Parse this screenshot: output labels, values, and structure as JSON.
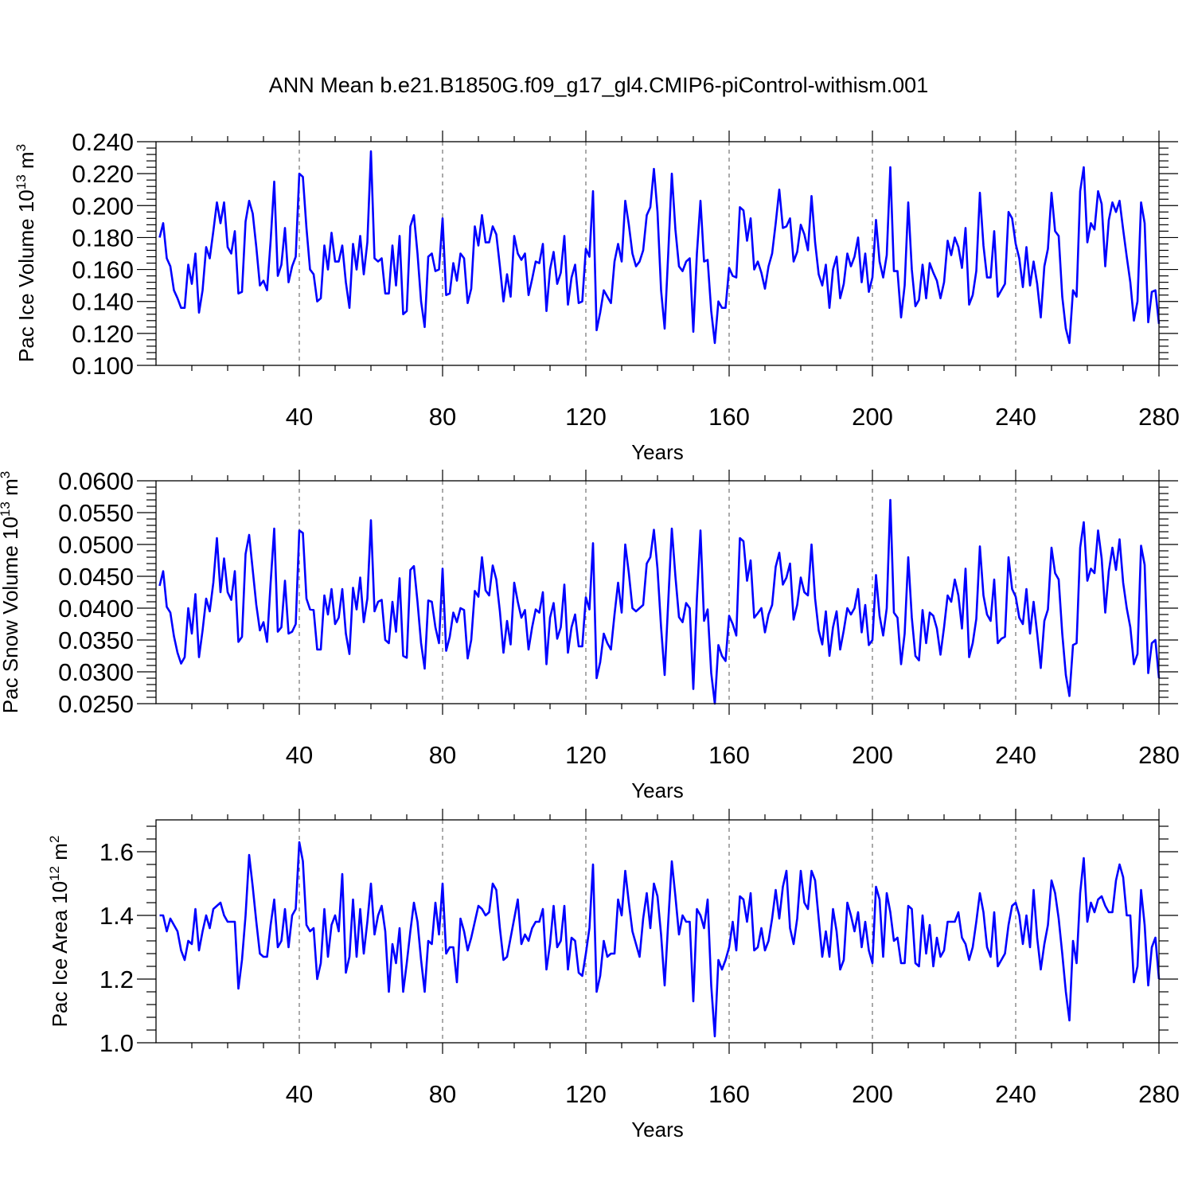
{
  "title": "ANN Mean b.e21.B1850G.f09_g17_gl4.CMIP6-piControl-withism.001",
  "colors": {
    "series": "#0000ff",
    "grid": "#555555",
    "axis": "#000000"
  },
  "chart_data": [
    {
      "type": "line",
      "ylabel_main": "Pac Ice Volume 10",
      "ylabel_exp": "13",
      "ylabel_unit": "m",
      "ylabel_unit_exp": "3",
      "xlabel": "Years",
      "xlim": [
        0,
        280
      ],
      "ylim": [
        0.1,
        0.24
      ],
      "x_ticks": [
        40,
        80,
        120,
        160,
        200,
        240,
        280
      ],
      "y_ticks": [
        "0.100",
        "0.120",
        "0.140",
        "0.160",
        "0.180",
        "0.200",
        "0.220",
        "0.240"
      ],
      "grid": "vertical-dashed",
      "x_start": 1,
      "values": [
        0.18,
        0.189,
        0.167,
        0.162,
        0.147,
        0.142,
        0.136,
        0.136,
        0.163,
        0.151,
        0.17,
        0.133,
        0.147,
        0.174,
        0.167,
        0.184,
        0.202,
        0.189,
        0.202,
        0.174,
        0.17,
        0.184,
        0.145,
        0.146,
        0.19,
        0.203,
        0.195,
        0.174,
        0.15,
        0.153,
        0.147,
        0.178,
        0.215,
        0.156,
        0.163,
        0.186,
        0.152,
        0.162,
        0.168,
        0.22,
        0.218,
        0.186,
        0.16,
        0.157,
        0.14,
        0.142,
        0.175,
        0.16,
        0.183,
        0.165,
        0.165,
        0.175,
        0.152,
        0.136,
        0.176,
        0.16,
        0.181,
        0.157,
        0.177,
        0.234,
        0.167,
        0.165,
        0.167,
        0.145,
        0.145,
        0.175,
        0.15,
        0.181,
        0.132,
        0.134,
        0.187,
        0.194,
        0.17,
        0.14,
        0.124,
        0.168,
        0.17,
        0.159,
        0.16,
        0.192,
        0.144,
        0.145,
        0.164,
        0.153,
        0.17,
        0.167,
        0.139,
        0.148,
        0.187,
        0.175,
        0.194,
        0.177,
        0.177,
        0.187,
        0.182,
        0.162,
        0.14,
        0.157,
        0.143,
        0.181,
        0.17,
        0.166,
        0.17,
        0.144,
        0.154,
        0.165,
        0.164,
        0.176,
        0.134,
        0.16,
        0.171,
        0.151,
        0.158,
        0.181,
        0.138,
        0.155,
        0.163,
        0.139,
        0.14,
        0.173,
        0.168,
        0.209,
        0.122,
        0.133,
        0.147,
        0.143,
        0.139,
        0.165,
        0.176,
        0.165,
        0.203,
        0.188,
        0.17,
        0.162,
        0.165,
        0.172,
        0.194,
        0.199,
        0.223,
        0.196,
        0.147,
        0.123,
        0.17,
        0.22,
        0.185,
        0.162,
        0.159,
        0.165,
        0.167,
        0.121,
        0.17,
        0.203,
        0.165,
        0.166,
        0.134,
        0.114,
        0.14,
        0.136,
        0.136,
        0.161,
        0.156,
        0.155,
        0.199,
        0.197,
        0.178,
        0.192,
        0.16,
        0.165,
        0.158,
        0.148,
        0.162,
        0.17,
        0.189,
        0.21,
        0.186,
        0.187,
        0.192,
        0.165,
        0.171,
        0.188,
        0.182,
        0.172,
        0.206,
        0.177,
        0.157,
        0.15,
        0.163,
        0.136,
        0.16,
        0.168,
        0.142,
        0.151,
        0.17,
        0.162,
        0.168,
        0.18,
        0.152,
        0.17,
        0.146,
        0.155,
        0.191,
        0.165,
        0.155,
        0.169,
        0.224,
        0.159,
        0.159,
        0.13,
        0.15,
        0.202,
        0.16,
        0.137,
        0.141,
        0.163,
        0.142,
        0.164,
        0.158,
        0.153,
        0.142,
        0.152,
        0.178,
        0.169,
        0.18,
        0.174,
        0.161,
        0.186,
        0.138,
        0.144,
        0.159,
        0.208,
        0.175,
        0.155,
        0.155,
        0.184,
        0.143,
        0.147,
        0.151,
        0.196,
        0.192,
        0.176,
        0.167,
        0.149,
        0.174,
        0.15,
        0.165,
        0.151,
        0.13,
        0.162,
        0.173,
        0.208,
        0.184,
        0.181,
        0.143,
        0.123,
        0.114,
        0.147,
        0.143,
        0.209,
        0.224,
        0.177,
        0.189,
        0.185,
        0.209,
        0.201,
        0.162,
        0.191,
        0.202,
        0.196,
        0.203,
        0.185,
        0.168,
        0.152,
        0.128,
        0.14,
        0.202,
        0.189,
        0.127,
        0.146,
        0.147,
        0.126
      ]
    },
    {
      "type": "line",
      "ylabel_main": "Pac Snow Volume 10",
      "ylabel_exp": "13",
      "ylabel_unit": "m",
      "ylabel_unit_exp": "3",
      "xlabel": "Years",
      "xlim": [
        0,
        280
      ],
      "ylim": [
        0.025,
        0.06
      ],
      "x_ticks": [
        40,
        80,
        120,
        160,
        200,
        240,
        280
      ],
      "y_ticks": [
        "0.0250",
        "0.0300",
        "0.0350",
        "0.0400",
        "0.0450",
        "0.0500",
        "0.0550",
        "0.0600"
      ],
      "grid": "vertical-dashed",
      "x_start": 1,
      "values": [
        0.0435,
        0.0458,
        0.0402,
        0.0393,
        0.0356,
        0.033,
        0.0313,
        0.0323,
        0.04,
        0.036,
        0.0422,
        0.0323,
        0.0365,
        0.0415,
        0.0395,
        0.044,
        0.051,
        0.0425,
        0.0478,
        0.0425,
        0.0413,
        0.0458,
        0.0347,
        0.0355,
        0.0485,
        0.0515,
        0.046,
        0.0405,
        0.0365,
        0.0378,
        0.0347,
        0.044,
        0.0525,
        0.0363,
        0.037,
        0.0443,
        0.036,
        0.0363,
        0.0375,
        0.0522,
        0.0518,
        0.0415,
        0.0398,
        0.0397,
        0.0335,
        0.0335,
        0.042,
        0.039,
        0.043,
        0.0375,
        0.0385,
        0.043,
        0.036,
        0.0328,
        0.0432,
        0.0398,
        0.0448,
        0.0378,
        0.0415,
        0.0538,
        0.0395,
        0.041,
        0.0413,
        0.035,
        0.0345,
        0.041,
        0.0363,
        0.0447,
        0.0325,
        0.0322,
        0.046,
        0.0466,
        0.041,
        0.0345,
        0.0305,
        0.0412,
        0.041,
        0.037,
        0.0345,
        0.0462,
        0.0333,
        0.0355,
        0.0393,
        0.0378,
        0.04,
        0.0397,
        0.0321,
        0.035,
        0.0427,
        0.0418,
        0.048,
        0.0428,
        0.042,
        0.0467,
        0.0445,
        0.0395,
        0.033,
        0.038,
        0.0343,
        0.044,
        0.041,
        0.0385,
        0.0397,
        0.0335,
        0.037,
        0.0398,
        0.0393,
        0.0425,
        0.0312,
        0.0385,
        0.0408,
        0.0352,
        0.037,
        0.0437,
        0.033,
        0.037,
        0.039,
        0.034,
        0.034,
        0.0417,
        0.0398,
        0.0502,
        0.029,
        0.0315,
        0.036,
        0.0345,
        0.0335,
        0.039,
        0.044,
        0.0393,
        0.05,
        0.0455,
        0.04,
        0.0395,
        0.04,
        0.0405,
        0.047,
        0.048,
        0.0523,
        0.0462,
        0.037,
        0.0295,
        0.041,
        0.0525,
        0.045,
        0.0386,
        0.0378,
        0.0408,
        0.04,
        0.0273,
        0.0415,
        0.0522,
        0.038,
        0.0398,
        0.0298,
        0.025,
        0.0342,
        0.0325,
        0.0317,
        0.0388,
        0.0375,
        0.0357,
        0.051,
        0.0505,
        0.0443,
        0.0475,
        0.0385,
        0.0392,
        0.04,
        0.0362,
        0.039,
        0.0405,
        0.0465,
        0.0487,
        0.0437,
        0.0448,
        0.047,
        0.0382,
        0.0405,
        0.0448,
        0.0425,
        0.042,
        0.05,
        0.0415,
        0.0365,
        0.0343,
        0.0395,
        0.0325,
        0.037,
        0.0395,
        0.0335,
        0.0365,
        0.04,
        0.039,
        0.04,
        0.043,
        0.0362,
        0.0405,
        0.0342,
        0.035,
        0.0452,
        0.0388,
        0.0357,
        0.04,
        0.057,
        0.0393,
        0.0385,
        0.0312,
        0.036,
        0.048,
        0.0385,
        0.0325,
        0.0318,
        0.0397,
        0.0345,
        0.0393,
        0.0388,
        0.0368,
        0.0327,
        0.037,
        0.042,
        0.041,
        0.0445,
        0.042,
        0.0368,
        0.0462,
        0.0323,
        0.0345,
        0.0383,
        0.0497,
        0.042,
        0.039,
        0.038,
        0.0445,
        0.0345,
        0.0352,
        0.0355,
        0.048,
        0.043,
        0.0418,
        0.0385,
        0.0375,
        0.043,
        0.036,
        0.041,
        0.036,
        0.0306,
        0.038,
        0.0398,
        0.0495,
        0.0455,
        0.0445,
        0.036,
        0.0295,
        0.0262,
        0.0342,
        0.0345,
        0.0495,
        0.0535,
        0.0443,
        0.0462,
        0.0455,
        0.0522,
        0.0478,
        0.0393,
        0.0458,
        0.0495,
        0.046,
        0.0508,
        0.044,
        0.04,
        0.037,
        0.0312,
        0.0328,
        0.0498,
        0.0468,
        0.0298,
        0.0345,
        0.035,
        0.029
      ]
    },
    {
      "type": "line",
      "ylabel_main": "Pac Ice Area 10",
      "ylabel_exp": "12",
      "ylabel_unit": "m",
      "ylabel_unit_exp": "2",
      "xlabel": "Years",
      "xlim": [
        0,
        280
      ],
      "ylim": [
        1.0,
        1.7
      ],
      "x_ticks": [
        40,
        80,
        120,
        160,
        200,
        240,
        280
      ],
      "y_ticks": [
        "1.0",
        "1.2",
        "1.4",
        "1.6"
      ],
      "y_tick_values": [
        1.0,
        1.2,
        1.4,
        1.6
      ],
      "grid": "vertical-dashed",
      "x_start": 1,
      "values": [
        1.4,
        1.4,
        1.35,
        1.39,
        1.37,
        1.35,
        1.29,
        1.26,
        1.32,
        1.31,
        1.42,
        1.29,
        1.35,
        1.4,
        1.36,
        1.42,
        1.43,
        1.44,
        1.4,
        1.38,
        1.38,
        1.38,
        1.17,
        1.26,
        1.4,
        1.59,
        1.49,
        1.38,
        1.28,
        1.27,
        1.27,
        1.37,
        1.45,
        1.3,
        1.32,
        1.42,
        1.3,
        1.4,
        1.42,
        1.63,
        1.57,
        1.37,
        1.35,
        1.36,
        1.2,
        1.25,
        1.42,
        1.27,
        1.37,
        1.4,
        1.35,
        1.53,
        1.22,
        1.27,
        1.45,
        1.27,
        1.42,
        1.28,
        1.38,
        1.5,
        1.34,
        1.4,
        1.43,
        1.35,
        1.16,
        1.31,
        1.25,
        1.36,
        1.16,
        1.25,
        1.35,
        1.44,
        1.38,
        1.26,
        1.16,
        1.32,
        1.31,
        1.44,
        1.34,
        1.5,
        1.28,
        1.3,
        1.3,
        1.19,
        1.39,
        1.35,
        1.29,
        1.33,
        1.38,
        1.43,
        1.42,
        1.4,
        1.41,
        1.5,
        1.48,
        1.36,
        1.26,
        1.27,
        1.33,
        1.39,
        1.45,
        1.31,
        1.34,
        1.32,
        1.36,
        1.38,
        1.38,
        1.42,
        1.23,
        1.31,
        1.43,
        1.3,
        1.32,
        1.43,
        1.23,
        1.33,
        1.32,
        1.22,
        1.21,
        1.28,
        1.36,
        1.56,
        1.16,
        1.21,
        1.32,
        1.27,
        1.28,
        1.28,
        1.45,
        1.4,
        1.54,
        1.44,
        1.35,
        1.31,
        1.27,
        1.39,
        1.47,
        1.36,
        1.5,
        1.46,
        1.34,
        1.18,
        1.38,
        1.57,
        1.46,
        1.34,
        1.4,
        1.38,
        1.38,
        1.13,
        1.42,
        1.4,
        1.36,
        1.45,
        1.18,
        1.02,
        1.26,
        1.23,
        1.26,
        1.3,
        1.38,
        1.29,
        1.46,
        1.45,
        1.38,
        1.47,
        1.29,
        1.3,
        1.36,
        1.29,
        1.32,
        1.39,
        1.48,
        1.39,
        1.49,
        1.54,
        1.36,
        1.31,
        1.39,
        1.54,
        1.44,
        1.42,
        1.54,
        1.51,
        1.39,
        1.27,
        1.35,
        1.27,
        1.42,
        1.35,
        1.23,
        1.26,
        1.44,
        1.4,
        1.35,
        1.41,
        1.3,
        1.38,
        1.29,
        1.25,
        1.49,
        1.45,
        1.27,
        1.47,
        1.41,
        1.32,
        1.33,
        1.25,
        1.25,
        1.43,
        1.42,
        1.25,
        1.24,
        1.4,
        1.28,
        1.37,
        1.24,
        1.33,
        1.27,
        1.29,
        1.38,
        1.38,
        1.38,
        1.41,
        1.33,
        1.31,
        1.26,
        1.3,
        1.38,
        1.47,
        1.41,
        1.3,
        1.27,
        1.41,
        1.24,
        1.26,
        1.28,
        1.37,
        1.43,
        1.44,
        1.4,
        1.31,
        1.4,
        1.3,
        1.48,
        1.33,
        1.23,
        1.31,
        1.37,
        1.51,
        1.47,
        1.39,
        1.28,
        1.16,
        1.07,
        1.32,
        1.25,
        1.47,
        1.58,
        1.38,
        1.44,
        1.41,
        1.45,
        1.46,
        1.43,
        1.41,
        1.41,
        1.51,
        1.56,
        1.52,
        1.4,
        1.4,
        1.19,
        1.24,
        1.48,
        1.37,
        1.18,
        1.3,
        1.33,
        1.2
      ]
    }
  ]
}
